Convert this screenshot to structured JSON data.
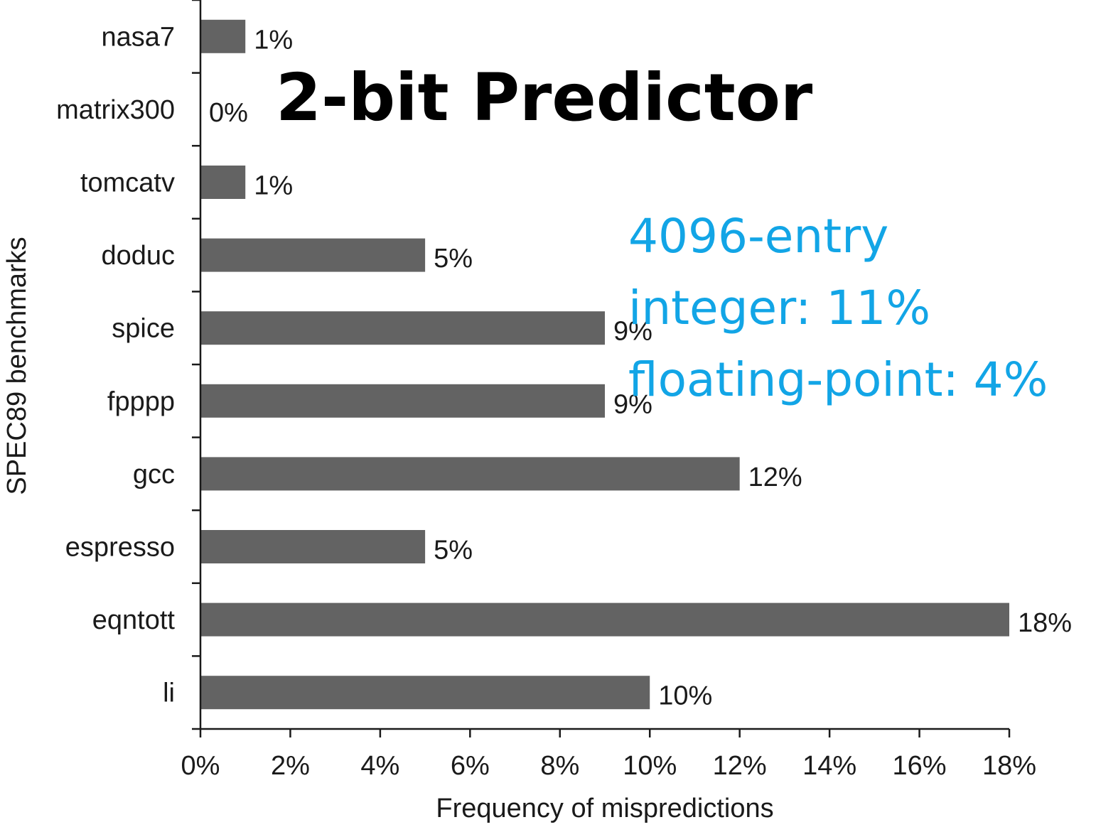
{
  "overlay": {
    "title": "2-bit Predictor",
    "notes": [
      "4096-entry",
      "integer: 11%",
      "floating-point: 4%"
    ],
    "notes_color": "#12a5e6"
  },
  "chart_data": {
    "type": "bar",
    "orientation": "horizontal",
    "categories": [
      "nasa7",
      "matrix300",
      "tomcatv",
      "doduc",
      "spice",
      "fpppp",
      "gcc",
      "espresso",
      "eqntott",
      "li"
    ],
    "values": [
      1,
      0,
      1,
      5,
      9,
      9,
      12,
      5,
      18,
      10
    ],
    "value_labels": [
      "1%",
      "0%",
      "1%",
      "5%",
      "9%",
      "9%",
      "12%",
      "5%",
      "18%",
      "10%"
    ],
    "xlabel": "Frequency of mispredictions",
    "ylabel": "SPEC89 benchmarks",
    "xlim": [
      0,
      18
    ],
    "x_ticks": [
      0,
      2,
      4,
      6,
      8,
      10,
      12,
      14,
      16,
      18
    ],
    "x_tick_labels": [
      "0%",
      "2%",
      "4%",
      "6%",
      "8%",
      "10%",
      "12%",
      "14%",
      "16%",
      "18%"
    ],
    "bar_color": "#636363",
    "grid": false
  }
}
